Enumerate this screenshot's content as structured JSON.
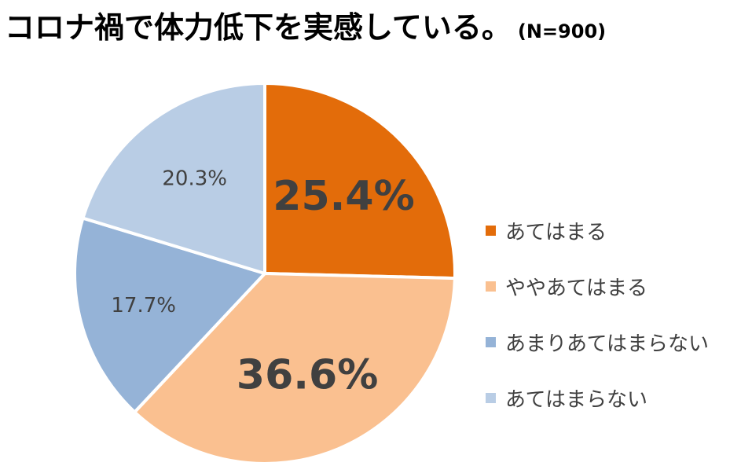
{
  "title": {
    "main": "コロナ禍で体力低下を実感している。",
    "sample_size": "(N=900)"
  },
  "chart_data": {
    "type": "pie",
    "start_angle_deg": 0,
    "direction": "clockwise",
    "slices": [
      {
        "label": "あてはまる",
        "value": 25.4,
        "value_label": "25.4%",
        "color": "#E36C0A",
        "emphasis": true
      },
      {
        "label": "ややあてはまる",
        "value": 36.6,
        "value_label": "36.6%",
        "color": "#FAC090",
        "emphasis": true
      },
      {
        "label": "あまりあてはまらない",
        "value": 17.7,
        "value_label": "17.7%",
        "color": "#95B3D7",
        "emphasis": false
      },
      {
        "label": "あてはまらない",
        "value": 20.3,
        "value_label": "20.3%",
        "color": "#B9CDE5",
        "emphasis": false
      }
    ],
    "legend_position": "right"
  }
}
